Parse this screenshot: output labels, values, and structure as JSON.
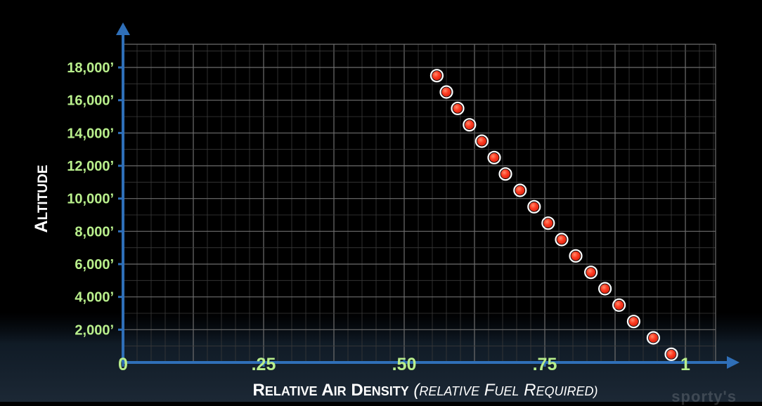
{
  "chart_data": {
    "type": "scatter",
    "ylabel": "Altitude",
    "xlabel": "Relative Air Density",
    "xlabel_paren": "(Relative Fuel Required)",
    "x_ticks": [
      {
        "value": 0,
        "label": "0"
      },
      {
        "value": 0.25,
        "label": ".25"
      },
      {
        "value": 0.5,
        "label": ".50"
      },
      {
        "value": 0.75,
        "label": ".75"
      },
      {
        "value": 1,
        "label": "1"
      }
    ],
    "y_ticks": [
      {
        "value": 2000,
        "label": "2,000’"
      },
      {
        "value": 4000,
        "label": "4,000’"
      },
      {
        "value": 6000,
        "label": "6,000’"
      },
      {
        "value": 8000,
        "label": "8,000’"
      },
      {
        "value": 10000,
        "label": "10,000’"
      },
      {
        "value": 12000,
        "label": "12,000’"
      },
      {
        "value": 14000,
        "label": "14,000’"
      },
      {
        "value": 16000,
        "label": "16,000’"
      },
      {
        "value": 18000,
        "label": "18,000’"
      }
    ],
    "xlim": [
      0,
      1.0
    ],
    "ylim": [
      0,
      18000
    ],
    "grid": true,
    "points": [
      {
        "x": 0.975,
        "y": 500
      },
      {
        "x": 0.943,
        "y": 1500
      },
      {
        "x": 0.908,
        "y": 2500
      },
      {
        "x": 0.882,
        "y": 3500
      },
      {
        "x": 0.857,
        "y": 4500
      },
      {
        "x": 0.832,
        "y": 5500
      },
      {
        "x": 0.805,
        "y": 6500
      },
      {
        "x": 0.78,
        "y": 7500
      },
      {
        "x": 0.756,
        "y": 8500
      },
      {
        "x": 0.731,
        "y": 9500
      },
      {
        "x": 0.706,
        "y": 10500
      },
      {
        "x": 0.68,
        "y": 11500
      },
      {
        "x": 0.66,
        "y": 12500
      },
      {
        "x": 0.638,
        "y": 13500
      },
      {
        "x": 0.616,
        "y": 14500
      },
      {
        "x": 0.595,
        "y": 15500
      },
      {
        "x": 0.575,
        "y": 16500
      },
      {
        "x": 0.558,
        "y": 17500
      }
    ],
    "colors": {
      "point": "#ff3b22",
      "axis": "#2f6fb8",
      "tick_label": "#b9ef8c",
      "title": "#ffffff"
    }
  },
  "watermark": "sporty's"
}
